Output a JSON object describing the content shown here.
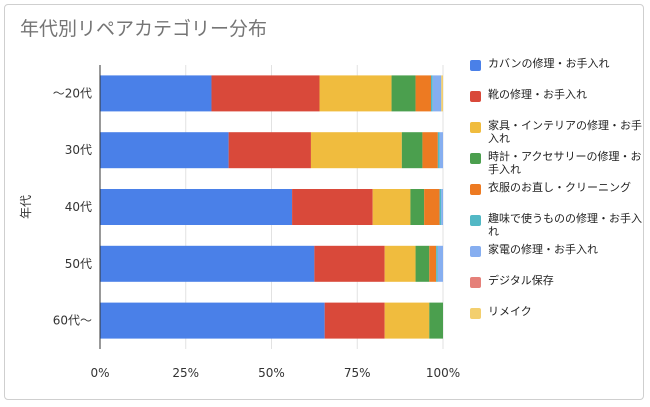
{
  "title": "年代別リペアカテゴリー分布",
  "chart_data": {
    "type": "bar",
    "orientation": "horizontal",
    "stacked": "percent",
    "ylabel": "年代",
    "xlabel": "",
    "categories": [
      "〜20代",
      "30代",
      "40代",
      "50代",
      "60代〜"
    ],
    "x_ticks": [
      "0%",
      "25%",
      "50%",
      "75%",
      "100%"
    ],
    "xlim": [
      0,
      100
    ],
    "series": [
      {
        "name": "カバンの修理・お手入れ",
        "color": "#4a80e8",
        "values": [
          32.5,
          37.5,
          56,
          62.5,
          65.5
        ]
      },
      {
        "name": "靴の修理・お手入れ",
        "color": "#d9493a",
        "values": [
          31.5,
          24,
          23.5,
          20.5,
          17.5
        ]
      },
      {
        "name": "家具・インテリアの修理・お手入れ",
        "color": "#f0bc3e",
        "values": [
          21,
          26.5,
          11,
          9,
          13
        ]
      },
      {
        "name": "時計・アクセサリーの修理・お手入れ",
        "color": "#4b9f4e",
        "values": [
          7,
          6,
          4,
          4,
          4
        ]
      },
      {
        "name": "衣服のお直し・クリーニング",
        "color": "#ed7a22",
        "values": [
          4.5,
          4.5,
          4.5,
          2,
          0
        ]
      },
      {
        "name": "趣味で使うものの修理・お手入れ",
        "color": "#52b8c5",
        "values": [
          0.5,
          0.5,
          0.5,
          0.5,
          0
        ]
      },
      {
        "name": "家電の修理・お手入れ",
        "color": "#86aef0",
        "values": [
          2.5,
          1,
          0.5,
          1.5,
          0
        ]
      },
      {
        "name": "デジタル保存",
        "color": "#e58079",
        "values": [
          0,
          0,
          0,
          0,
          0
        ]
      },
      {
        "name": "リメイク",
        "color": "#f3cf6e",
        "values": [
          0.5,
          0,
          0,
          0,
          0
        ]
      }
    ],
    "grid": true,
    "legend": "right"
  }
}
